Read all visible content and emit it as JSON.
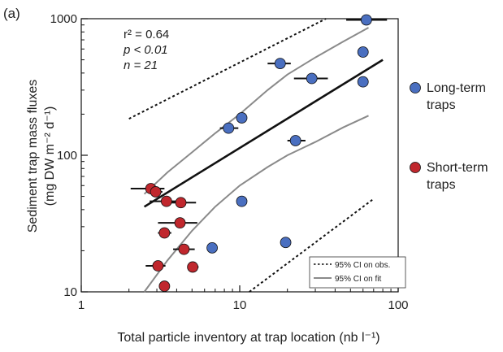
{
  "chart_data": {
    "type": "scatter",
    "panel_label": "(a)",
    "xlabel": "Total particle inventory at trap location (nb l⁻¹)",
    "ylabel_line1": "Sediment trap mass fluxes",
    "ylabel_line2": "(mg DW m⁻² d⁻¹)",
    "xscale": "log",
    "yscale": "log",
    "xlim": [
      1,
      100
    ],
    "ylim": [
      10,
      1000
    ],
    "xticks": [
      {
        "value": 1,
        "label": "1"
      },
      {
        "value": 10,
        "label": "10"
      },
      {
        "value": 100,
        "label": "100"
      }
    ],
    "yticks": [
      {
        "value": 10,
        "label": "10"
      },
      {
        "value": 100,
        "label": "100"
      },
      {
        "value": 1000,
        "label": "1000"
      }
    ],
    "stats": {
      "r2": "r² = 0.64",
      "p": "p < 0.01",
      "n": "n = 21"
    },
    "series": [
      {
        "name": "Long-term traps",
        "color": "#4a6fc0",
        "points": [
          {
            "x": 63,
            "y": 980,
            "xerr": [
              47,
              85
            ]
          },
          {
            "x": 18,
            "y": 470,
            "xerr": [
              15,
              21
            ]
          },
          {
            "x": 28.5,
            "y": 365,
            "xerr": [
              22,
              36
            ]
          },
          {
            "x": 8.5,
            "y": 158,
            "xerr": [
              7.5,
              9.8
            ]
          },
          {
            "x": 10.3,
            "y": 188
          },
          {
            "x": 22.5,
            "y": 128,
            "xerr": [
              20,
              26
            ]
          },
          {
            "x": 10.3,
            "y": 46
          },
          {
            "x": 6.7,
            "y": 21
          },
          {
            "x": 19.5,
            "y": 23
          },
          {
            "x": 60,
            "y": 570
          },
          {
            "x": 60,
            "y": 345
          }
        ]
      },
      {
        "name": "Short-term traps",
        "color": "#c0272d",
        "points": [
          {
            "x": 2.75,
            "y": 57,
            "xerr": [
              2.05,
              3.35
            ]
          },
          {
            "x": 2.95,
            "y": 54,
            "xerr": [
              2.7,
              3.25
            ]
          },
          {
            "x": 3.45,
            "y": 46,
            "xerr": [
              2.7,
              4.4
            ]
          },
          {
            "x": 4.25,
            "y": 45,
            "xerr": [
              3.6,
              5.3
            ]
          },
          {
            "x": 4.2,
            "y": 32,
            "xerr": [
              3.05,
              5.4
            ]
          },
          {
            "x": 3.35,
            "y": 27,
            "xerr": [
              3.05,
              3.7
            ]
          },
          {
            "x": 4.45,
            "y": 20.5,
            "xerr": [
              3.8,
              5.2
            ]
          },
          {
            "x": 3.05,
            "y": 15.5,
            "xerr": [
              2.55,
              3.4
            ]
          },
          {
            "x": 5.05,
            "y": 15.2,
            "xerr": [
              4.7,
              5.5
            ]
          },
          {
            "x": 3.35,
            "y": 11
          }
        ]
      }
    ],
    "fit_line": {
      "x": [
        2.5,
        80
      ],
      "y": [
        42,
        500
      ],
      "color": "#111111"
    },
    "ci_fit_upper": {
      "x": [
        2.5,
        3.5,
        5,
        7,
        10,
        15,
        20,
        30,
        45,
        65
      ],
      "y": [
        52,
        75,
        105,
        145,
        200,
        300,
        390,
        520,
        680,
        860
      ],
      "color": "#8a8a8a"
    },
    "ci_fit_lower": {
      "x": [
        2.5,
        3.5,
        5,
        7,
        10,
        15,
        20,
        30,
        45,
        65
      ],
      "y": [
        10,
        17,
        28,
        42,
        60,
        82,
        100,
        125,
        160,
        195
      ],
      "color": "#8a8a8a"
    },
    "ci_obs_upper": {
      "x": [
        2,
        35
      ],
      "y": [
        185,
        1000
      ]
    },
    "ci_obs_lower": {
      "x": [
        11.5,
        70
      ],
      "y": [
        10,
        48
      ]
    },
    "legend": {
      "placement": "bottom-right",
      "obs_label": "95% CI on obs.",
      "fit_label": "95% CI on fit"
    },
    "side_legend": [
      {
        "line1": "Long-term",
        "line2": "traps",
        "color": "#4a6fc0"
      },
      {
        "line1": "Short-term",
        "line2": "traps",
        "color": "#c0272d"
      }
    ]
  }
}
